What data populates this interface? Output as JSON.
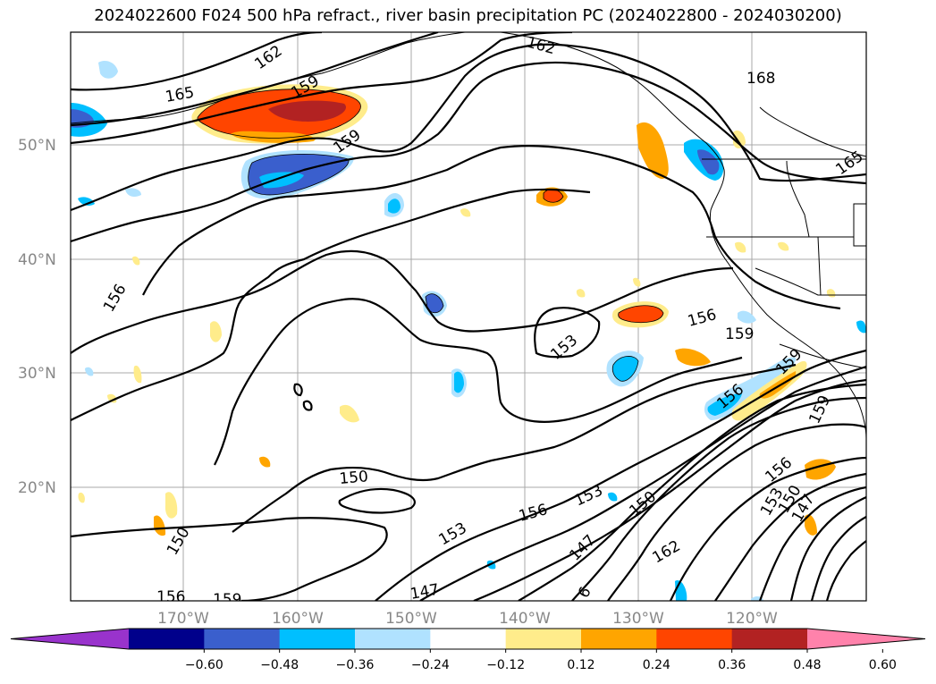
{
  "title": "2024022600 F024 500 hPa refract., river basin precipitation PC (2024022800 - 2024030200)",
  "map": {
    "lat_labels": [
      "50°N",
      "40°N",
      "30°N",
      "20°N"
    ],
    "lon_labels": [
      "170°W",
      "160°W",
      "150°W",
      "140°W",
      "130°W",
      "120°W"
    ],
    "contour_labels": [
      {
        "text": "162"
      },
      {
        "text": "165"
      },
      {
        "text": "159"
      },
      {
        "text": "159"
      },
      {
        "text": "162"
      },
      {
        "text": "168"
      },
      {
        "text": "165"
      },
      {
        "text": "156"
      },
      {
        "text": "153"
      },
      {
        "text": "156"
      },
      {
        "text": "159"
      },
      {
        "text": "156"
      },
      {
        "text": "159"
      },
      {
        "text": "150"
      },
      {
        "text": "156"
      },
      {
        "text": "153"
      },
      {
        "text": "150"
      },
      {
        "text": "153"
      },
      {
        "text": "147"
      },
      {
        "text": "162"
      },
      {
        "text": "150"
      },
      {
        "text": "156"
      },
      {
        "text": "159"
      },
      {
        "text": "147"
      },
      {
        "text": "6"
      },
      {
        "text": "156"
      },
      {
        "text": "153"
      },
      {
        "text": "150"
      },
      {
        "text": "147"
      },
      {
        "text": "159"
      }
    ]
  },
  "colorbar": {
    "ticks": [
      "−0.60",
      "−0.48",
      "−0.36",
      "−0.24",
      "−0.12",
      "0.12",
      "0.24",
      "0.36",
      "0.48",
      "0.60"
    ],
    "colors": [
      "#9933cc",
      "#00008b",
      "#3a5fcd",
      "#00bfff",
      "#b0e2ff",
      "#ffffff",
      "#ffec8b",
      "#ffa500",
      "#ff4500",
      "#b22222",
      "#ff82ab"
    ]
  }
}
